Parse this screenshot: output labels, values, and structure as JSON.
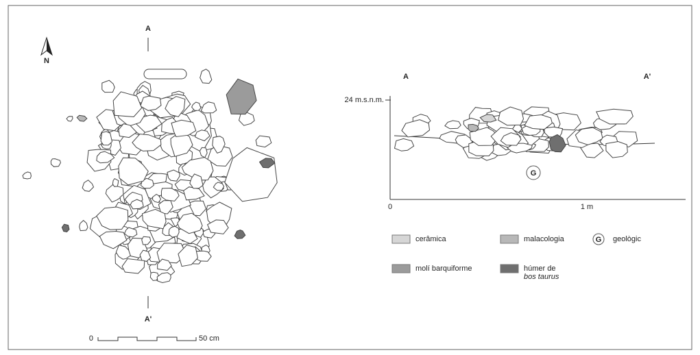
{
  "plan": {
    "section_start": "A",
    "section_end": "A'",
    "north": "N",
    "scale": {
      "start": "0",
      "end": "50 cm"
    }
  },
  "profile": {
    "section_start": "A",
    "section_end": "A'",
    "elevation": "24 m.s.n.m.",
    "x_start": "0",
    "x_mark": "1 m",
    "geologic_symbol": "G"
  },
  "legend": [
    {
      "label": "cerâmica",
      "color": "#d6d6d6"
    },
    {
      "label": "malacologia",
      "color": "#b8b8b8"
    },
    {
      "symbol": "G",
      "label": "geològic"
    },
    {
      "label": "molí barquiforme",
      "color": "#9b9b9b"
    },
    {
      "label": "húmer de",
      "label_italic": "bos taurus",
      "color": "#6f6f6f"
    }
  ]
}
